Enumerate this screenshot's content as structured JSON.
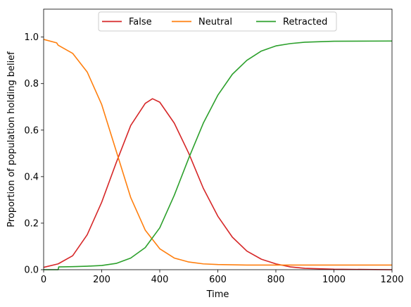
{
  "chart_data": {
    "type": "line",
    "xlabel": "Time",
    "ylabel": "Proportion of population holding belief",
    "xlim": [
      0,
      1200
    ],
    "ylim": [
      0,
      1.12
    ],
    "xticks": [
      0,
      200,
      400,
      600,
      800,
      1000,
      1200
    ],
    "yticks": [
      0.0,
      0.2,
      0.4,
      0.6,
      0.8,
      1.0
    ],
    "xtick_labels": [
      "0",
      "200",
      "400",
      "600",
      "800",
      "1000",
      "1200"
    ],
    "ytick_labels": [
      "0.0",
      "0.2",
      "0.4",
      "0.6",
      "0.8",
      "1.0"
    ],
    "grid": false,
    "legend_position": "top-center",
    "series": [
      {
        "name": "False",
        "color": "#d62728",
        "points": [
          [
            0,
            0.01
          ],
          [
            50,
            0.025
          ],
          [
            100,
            0.06
          ],
          [
            150,
            0.15
          ],
          [
            200,
            0.29
          ],
          [
            250,
            0.46
          ],
          [
            300,
            0.62
          ],
          [
            350,
            0.715
          ],
          [
            375,
            0.735
          ],
          [
            400,
            0.72
          ],
          [
            450,
            0.63
          ],
          [
            500,
            0.5
          ],
          [
            550,
            0.35
          ],
          [
            600,
            0.23
          ],
          [
            650,
            0.14
          ],
          [
            700,
            0.08
          ],
          [
            750,
            0.045
          ],
          [
            800,
            0.025
          ],
          [
            850,
            0.012
          ],
          [
            900,
            0.006
          ],
          [
            1000,
            0.002
          ],
          [
            1200,
            0.0
          ]
        ]
      },
      {
        "name": "Neutral",
        "color": "#ff7f0e",
        "points": [
          [
            0,
            0.99
          ],
          [
            45,
            0.975
          ],
          [
            50,
            0.965
          ],
          [
            100,
            0.93
          ],
          [
            150,
            0.85
          ],
          [
            200,
            0.71
          ],
          [
            250,
            0.51
          ],
          [
            300,
            0.31
          ],
          [
            350,
            0.17
          ],
          [
            400,
            0.09
          ],
          [
            450,
            0.05
          ],
          [
            500,
            0.033
          ],
          [
            550,
            0.025
          ],
          [
            600,
            0.022
          ],
          [
            700,
            0.02
          ],
          [
            800,
            0.02
          ],
          [
            1000,
            0.02
          ],
          [
            1200,
            0.02
          ]
        ]
      },
      {
        "name": "Retracted",
        "color": "#2ca02c",
        "points": [
          [
            0,
            0.0
          ],
          [
            50,
            0.0
          ],
          [
            52,
            0.012
          ],
          [
            100,
            0.013
          ],
          [
            150,
            0.015
          ],
          [
            200,
            0.018
          ],
          [
            250,
            0.027
          ],
          [
            300,
            0.05
          ],
          [
            350,
            0.095
          ],
          [
            400,
            0.18
          ],
          [
            450,
            0.32
          ],
          [
            500,
            0.48
          ],
          [
            550,
            0.63
          ],
          [
            600,
            0.75
          ],
          [
            650,
            0.84
          ],
          [
            700,
            0.9
          ],
          [
            750,
            0.94
          ],
          [
            800,
            0.962
          ],
          [
            850,
            0.972
          ],
          [
            900,
            0.978
          ],
          [
            1000,
            0.982
          ],
          [
            1200,
            0.983
          ]
        ]
      }
    ]
  }
}
